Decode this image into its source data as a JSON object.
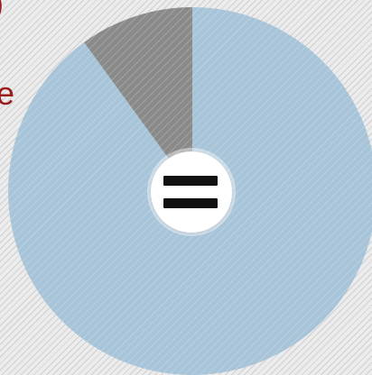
{
  "edge_text": {
    "top_fragment": ")",
    "middle_fragment": "e"
  },
  "wheel": {
    "segments": [
      {
        "name": "large-segment",
        "fraction": 0.9,
        "color": "#a7c4d9"
      },
      {
        "name": "small-segment",
        "fraction": 0.1,
        "color": "#8a8a8a"
      }
    ],
    "center_button_icon": "menu-icon"
  },
  "colors": {
    "background": "#ececec",
    "edge_text": "#9b1c1c",
    "button": "#ffffff",
    "icon": "#111111"
  }
}
